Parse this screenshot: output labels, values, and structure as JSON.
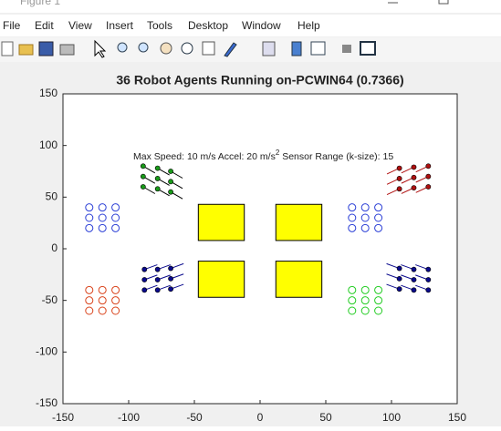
{
  "window": {
    "title": "Figure 1"
  },
  "menu": [
    "File",
    "Edit",
    "View",
    "Insert",
    "Tools",
    "Desktop",
    "Window",
    "Help"
  ],
  "chart_data": {
    "type": "scatter",
    "title": "36 Robot Agents Running on-PCWIN64 (0.7366)",
    "annotation": {
      "text": "Max Speed: 10 m/s Accel: 20 m/s",
      "superscript": "2",
      "text_after": " Sensor Range (k-size): 15"
    },
    "xlim": [
      -150,
      150
    ],
    "ylim": [
      -150,
      150
    ],
    "xticks": [
      -150,
      -100,
      -50,
      0,
      50,
      100,
      150
    ],
    "yticks": [
      -150,
      -100,
      -50,
      0,
      50,
      100,
      150
    ],
    "obstacles": [
      {
        "x": [
          -47,
          -12
        ],
        "y": [
          8,
          43
        ],
        "color": "#ffff00"
      },
      {
        "x": [
          12,
          47
        ],
        "y": [
          8,
          43
        ],
        "color": "#ffff00"
      },
      {
        "x": [
          -47,
          -12
        ],
        "y": [
          -47,
          -12
        ],
        "color": "#ffff00"
      },
      {
        "x": [
          12,
          47
        ],
        "y": [
          -47,
          -12
        ],
        "color": "#ffff00"
      }
    ],
    "series": [
      {
        "marker": "circle",
        "color": "#2b3fd6",
        "x": [
          -130,
          -120,
          -110,
          -130,
          -120,
          -110,
          -130,
          -120,
          -110
        ],
        "values": [
          40,
          40,
          40,
          30,
          30,
          30,
          20,
          20,
          20
        ]
      },
      {
        "marker": "circle",
        "color": "#2b3fd6",
        "x": [
          70,
          80,
          90,
          70,
          80,
          90,
          70,
          80,
          90
        ],
        "values": [
          40,
          40,
          40,
          30,
          30,
          30,
          20,
          20,
          20
        ]
      },
      {
        "marker": "circle",
        "color": "#d9421a",
        "x": [
          -130,
          -120,
          -110,
          -130,
          -120,
          -110,
          -130,
          -120,
          -110
        ],
        "values": [
          -40,
          -40,
          -40,
          -50,
          -50,
          -50,
          -60,
          -60,
          -60
        ]
      },
      {
        "marker": "circle",
        "color": "#22cc22",
        "x": [
          70,
          80,
          90,
          70,
          80,
          90,
          70,
          80,
          90
        ],
        "values": [
          -40,
          -40,
          -40,
          -50,
          -50,
          -50,
          -60,
          -60,
          -60
        ]
      },
      {
        "marker": "dot",
        "color": "#1a9a1a",
        "tail_angle": -30,
        "x": [
          -89,
          -78,
          -68,
          -89,
          -78,
          -68,
          -89,
          -78,
          -68
        ],
        "values": [
          80,
          78,
          75,
          70,
          68,
          65,
          60,
          58,
          55
        ]
      },
      {
        "marker": "dot",
        "color": "#b01010",
        "tail_angle": 205,
        "x": [
          106,
          117,
          128,
          106,
          117,
          128,
          106,
          117,
          128
        ],
        "values": [
          78,
          79,
          80,
          68,
          69,
          70,
          58,
          59,
          60
        ]
      },
      {
        "marker": "dot",
        "color": "#0a0a8c",
        "tail_angle": 20,
        "x": [
          -88,
          -78,
          -68,
          -88,
          -78,
          -68,
          -88,
          -78,
          -68
        ],
        "values": [
          -20,
          -20,
          -19,
          -30,
          -30,
          -29,
          -40,
          -40,
          -39
        ]
      },
      {
        "marker": "dot",
        "color": "#0a0a8c",
        "tail_angle": 160,
        "x": [
          106,
          117,
          128,
          106,
          117,
          128,
          106,
          117,
          128
        ],
        "values": [
          -19,
          -20,
          -20,
          -29,
          -30,
          -30,
          -39,
          -40,
          -40
        ]
      }
    ]
  }
}
